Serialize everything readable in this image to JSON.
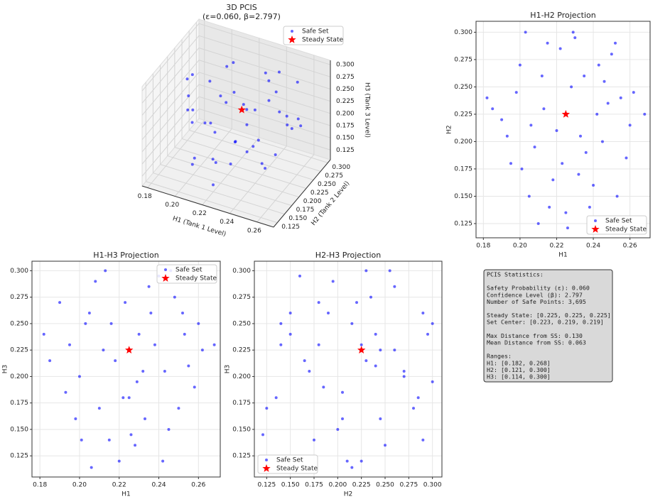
{
  "chart_data": [
    {
      "type": "scatter3d",
      "title": "3D PCIS",
      "subtitle": "(ε=0.060, β=2.797)",
      "xlabel": "H1 (Tank 1 Level)",
      "ylabel": "H2 (Tank 2 Level)",
      "zlabel": "H3 (Tank 3 Level)",
      "xlim": [
        0.176,
        0.272
      ],
      "ylim": [
        0.112,
        0.309
      ],
      "zlim": [
        0.105,
        0.309
      ],
      "xticks": [
        0.18,
        {
          "value": 0.2,
          "label": "0.20"
        },
        0.22,
        0.24,
        0.26
      ],
      "yticks": [
        0.125,
        {
          "value": 0.15,
          "label": "0.150"
        },
        0.175,
        {
          "value": 0.2,
          "label": "0.200"
        },
        0.225,
        {
          "value": 0.25,
          "label": "0.250"
        },
        0.275,
        {
          "value": 0.3,
          "label": "0.300"
        }
      ],
      "zticks": [
        0.125,
        {
          "value": 0.15,
          "label": "0.150"
        },
        0.175,
        {
          "value": 0.2,
          "label": "0.200"
        },
        0.225,
        {
          "value": 0.25,
          "label": "0.250"
        },
        0.275,
        {
          "value": 0.3,
          "label": "0.300"
        }
      ],
      "legend": "upper right",
      "grid": true,
      "series": [
        {
          "name": "Safe Set",
          "color": "#0000ff",
          "marker": "circle",
          "x": [
            0.195,
            0.205,
            0.215,
            0.225,
            0.235,
            0.245,
            0.255,
            0.19,
            0.2,
            0.21,
            0.22,
            0.23,
            0.24,
            0.25,
            0.26,
            0.185,
            0.198,
            0.208,
            0.218,
            0.228,
            0.238,
            0.248,
            0.258,
            0.203,
            0.213,
            0.223,
            0.233,
            0.243,
            0.253,
            0.193,
            0.201,
            0.212,
            0.222,
            0.232,
            0.242,
            0.252,
            0.262,
            0.268,
            0.182,
            0.216,
            0.236,
            0.226,
            0.206,
            0.246,
            0.229
          ],
          "y": [
            0.18,
            0.15,
            0.29,
            0.135,
            0.26,
            0.2,
            0.24,
            0.22,
            0.27,
            0.125,
            0.21,
            0.295,
            0.16,
            0.28,
            0.215,
            0.23,
            0.245,
            0.195,
            0.165,
            0.25,
            0.14,
            0.235,
            0.185,
            0.3,
            0.23,
            0.18,
            0.205,
            0.27,
            0.15,
            0.205,
            0.175,
            0.26,
            0.285,
            0.17,
            0.225,
            0.29,
            0.245,
            0.225,
            0.24,
            0.14,
            0.19,
            0.121,
            0.215,
            0.255,
            0.3
          ],
          "z": [
            0.23,
            0.26,
            0.14,
            0.18,
            0.285,
            0.15,
            0.21,
            0.27,
            0.2,
            0.17,
            0.12,
            0.24,
            0.295,
            0.17,
            0.25,
            0.215,
            0.16,
            0.29,
            0.215,
            0.135,
            0.23,
            0.275,
            0.19,
            0.25,
            0.3,
            0.27,
            0.16,
            0.205,
            0.24,
            0.185,
            0.14,
            0.225,
            0.18,
            0.205,
            0.12,
            0.26,
            0.225,
            0.23,
            0.24,
            0.25,
            0.26,
            0.145,
            0.114,
            0.3,
            0.195
          ]
        },
        {
          "name": "Steady State",
          "color": "#ff0000",
          "marker": "star",
          "x": [
            0.225
          ],
          "y": [
            0.225
          ],
          "z": [
            0.225
          ]
        }
      ]
    },
    {
      "type": "scatter",
      "title": "H1-H2 Projection",
      "xlabel": "H1",
      "ylabel": "H2",
      "xlim": [
        0.176,
        0.271
      ],
      "ylim": [
        0.112,
        0.31
      ],
      "xticks": [
        0.18,
        {
          "value": 0.2,
          "label": "0.20"
        },
        0.22,
        0.24,
        0.26
      ],
      "yticks": [
        0.125,
        {
          "value": 0.15,
          "label": "0.150"
        },
        0.175,
        {
          "value": 0.2,
          "label": "0.200"
        },
        0.225,
        {
          "value": 0.25,
          "label": "0.250"
        },
        0.275,
        {
          "value": 0.3,
          "label": "0.300"
        }
      ],
      "legend": "lower right",
      "grid": true,
      "series": [
        {
          "name": "Safe Set",
          "color": "#0000ff",
          "marker": "circle",
          "x": [
            0.195,
            0.205,
            0.215,
            0.225,
            0.235,
            0.245,
            0.255,
            0.19,
            0.2,
            0.21,
            0.22,
            0.23,
            0.24,
            0.25,
            0.26,
            0.185,
            0.198,
            0.208,
            0.218,
            0.228,
            0.238,
            0.248,
            0.258,
            0.203,
            0.213,
            0.223,
            0.233,
            0.243,
            0.253,
            0.193,
            0.201,
            0.212,
            0.222,
            0.232,
            0.242,
            0.252,
            0.262,
            0.268,
            0.182,
            0.216,
            0.236,
            0.226,
            0.206,
            0.246,
            0.229
          ],
          "values": [
            0.18,
            0.15,
            0.29,
            0.135,
            0.26,
            0.2,
            0.24,
            0.22,
            0.27,
            0.125,
            0.21,
            0.295,
            0.16,
            0.28,
            0.215,
            0.23,
            0.245,
            0.195,
            0.165,
            0.25,
            0.14,
            0.235,
            0.185,
            0.3,
            0.23,
            0.18,
            0.205,
            0.27,
            0.15,
            0.205,
            0.175,
            0.26,
            0.285,
            0.17,
            0.225,
            0.29,
            0.245,
            0.225,
            0.24,
            0.14,
            0.19,
            0.121,
            0.215,
            0.255,
            0.3
          ]
        },
        {
          "name": "Steady State",
          "color": "#ff0000",
          "marker": "star",
          "x": [
            0.225
          ],
          "values": [
            0.225
          ]
        }
      ]
    },
    {
      "type": "scatter",
      "title": "H1-H3 Projection",
      "xlabel": "H1",
      "ylabel": "H3",
      "xlim": [
        0.176,
        0.271
      ],
      "ylim": [
        0.105,
        0.309
      ],
      "xticks": [
        0.18,
        {
          "value": 0.2,
          "label": "0.20"
        },
        0.22,
        0.24,
        0.26
      ],
      "yticks": [
        0.125,
        {
          "value": 0.15,
          "label": "0.150"
        },
        0.175,
        {
          "value": 0.2,
          "label": "0.200"
        },
        0.225,
        {
          "value": 0.25,
          "label": "0.250"
        },
        0.275,
        {
          "value": 0.3,
          "label": "0.300"
        }
      ],
      "legend": "upper right",
      "grid": true,
      "series": [
        {
          "name": "Safe Set",
          "color": "#0000ff",
          "marker": "circle",
          "x": [
            0.195,
            0.205,
            0.215,
            0.225,
            0.235,
            0.245,
            0.255,
            0.19,
            0.2,
            0.21,
            0.22,
            0.23,
            0.24,
            0.25,
            0.26,
            0.185,
            0.198,
            0.208,
            0.218,
            0.228,
            0.238,
            0.248,
            0.258,
            0.203,
            0.213,
            0.223,
            0.233,
            0.243,
            0.253,
            0.193,
            0.201,
            0.212,
            0.222,
            0.232,
            0.242,
            0.252,
            0.262,
            0.268,
            0.182,
            0.216,
            0.236,
            0.226,
            0.206,
            0.246,
            0.229
          ],
          "values": [
            0.23,
            0.26,
            0.14,
            0.18,
            0.285,
            0.15,
            0.21,
            0.27,
            0.2,
            0.17,
            0.12,
            0.24,
            0.295,
            0.17,
            0.25,
            0.215,
            0.16,
            0.29,
            0.215,
            0.135,
            0.23,
            0.275,
            0.19,
            0.25,
            0.3,
            0.27,
            0.16,
            0.205,
            0.24,
            0.185,
            0.14,
            0.225,
            0.18,
            0.205,
            0.12,
            0.26,
            0.225,
            0.23,
            0.24,
            0.25,
            0.26,
            0.145,
            0.114,
            0.3,
            0.195
          ]
        },
        {
          "name": "Steady State",
          "color": "#ff0000",
          "marker": "star",
          "x": [
            0.225
          ],
          "values": [
            0.225
          ]
        }
      ]
    },
    {
      "type": "scatter",
      "title": "H2-H3 Projection",
      "xlabel": "H2",
      "ylabel": "H3",
      "xlim": [
        0.112,
        0.31
      ],
      "ylim": [
        0.105,
        0.309
      ],
      "xticks": [
        0.125,
        {
          "value": 0.15,
          "label": "0.150"
        },
        0.175,
        {
          "value": 0.2,
          "label": "0.200"
        },
        0.225,
        {
          "value": 0.25,
          "label": "0.250"
        },
        0.275,
        {
          "value": 0.3,
          "label": "0.300"
        }
      ],
      "yticks": [
        0.125,
        {
          "value": 0.15,
          "label": "0.150"
        },
        0.175,
        {
          "value": 0.2,
          "label": "0.200"
        },
        0.225,
        {
          "value": 0.25,
          "label": "0.250"
        },
        0.275,
        {
          "value": 0.3,
          "label": "0.300"
        }
      ],
      "legend": "lower left",
      "grid": true,
      "series": [
        {
          "name": "Safe Set",
          "color": "#0000ff",
          "marker": "circle",
          "x": [
            0.18,
            0.15,
            0.29,
            0.135,
            0.26,
            0.2,
            0.24,
            0.22,
            0.27,
            0.125,
            0.21,
            0.295,
            0.16,
            0.28,
            0.215,
            0.23,
            0.245,
            0.195,
            0.165,
            0.25,
            0.14,
            0.235,
            0.185,
            0.3,
            0.23,
            0.18,
            0.205,
            0.27,
            0.15,
            0.205,
            0.175,
            0.26,
            0.285,
            0.17,
            0.225,
            0.29,
            0.245,
            0.225,
            0.24,
            0.14,
            0.19,
            0.121,
            0.215,
            0.255,
            0.3
          ],
          "values": [
            0.23,
            0.26,
            0.14,
            0.18,
            0.285,
            0.15,
            0.21,
            0.27,
            0.2,
            0.17,
            0.12,
            0.24,
            0.295,
            0.17,
            0.25,
            0.215,
            0.16,
            0.29,
            0.215,
            0.135,
            0.23,
            0.275,
            0.19,
            0.25,
            0.3,
            0.27,
            0.16,
            0.205,
            0.24,
            0.185,
            0.14,
            0.225,
            0.18,
            0.205,
            0.12,
            0.26,
            0.225,
            0.23,
            0.24,
            0.25,
            0.26,
            0.145,
            0.114,
            0.3,
            0.195
          ]
        },
        {
          "name": "Steady State",
          "color": "#ff0000",
          "marker": "star",
          "x": [
            0.225
          ],
          "values": [
            0.225
          ]
        }
      ]
    }
  ],
  "stats": {
    "heading": "PCIS Statistics:",
    "groups": [
      [
        "Safety Probability (ε): 0.060",
        "Confidence Level (β): 2.797",
        "Number of Safe Points: 3,695"
      ],
      [
        "Steady State: [0.225, 0.225, 0.225]",
        "Set Center: [0.223, 0.219, 0.219]"
      ],
      [
        "Max Distance from SS: 0.130",
        "Mean Distance from SS: 0.063"
      ],
      [
        "Ranges:",
        "H1: [0.182, 0.268]",
        "H2: [0.121, 0.300]",
        "H3: [0.114, 0.300]"
      ]
    ]
  }
}
